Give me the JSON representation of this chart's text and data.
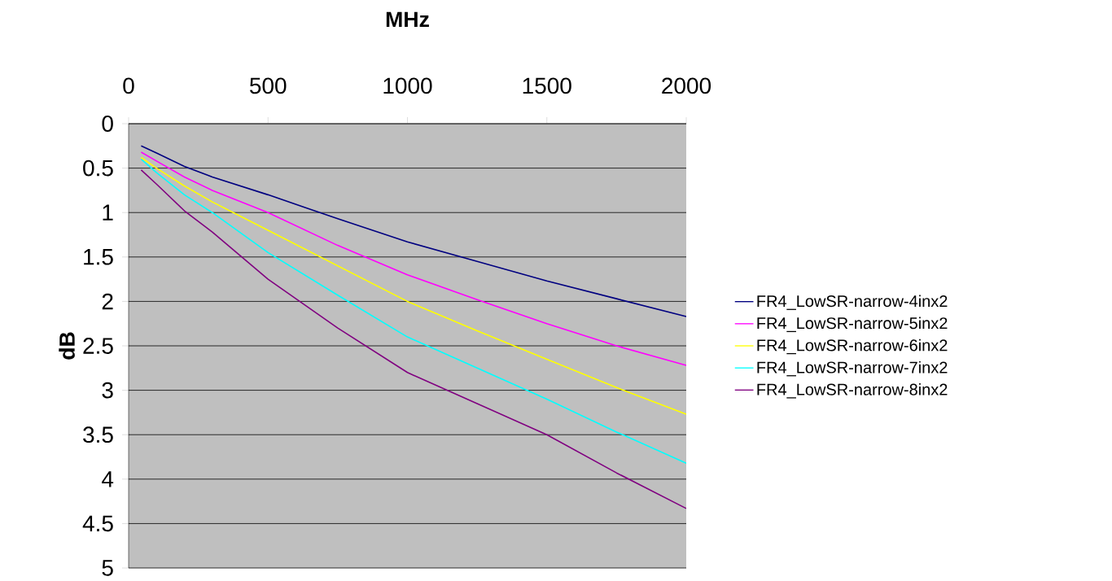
{
  "chart_data": {
    "type": "line",
    "xlabel": "MHz",
    "ylabel": "dB",
    "x": [
      45,
      100,
      200,
      300,
      500,
      750,
      1000,
      1250,
      1500,
      1750,
      2000
    ],
    "xlim": [
      0,
      2000
    ],
    "xticks": [
      0,
      500,
      1000,
      1500,
      2000
    ],
    "ylim": [
      5,
      0
    ],
    "yticks": [
      0,
      0.5,
      1,
      1.5,
      2,
      2.5,
      3,
      3.5,
      4,
      4.5,
      5
    ],
    "grid": "y",
    "legend": "right",
    "marker": "none",
    "line_style": "solid",
    "series": [
      {
        "name": "FR4_LowSR-narrow-4inx2",
        "color": "#000080",
        "values": [
          0.25,
          0.33,
          0.48,
          0.6,
          0.8,
          1.07,
          1.33,
          1.55,
          1.77,
          1.97,
          2.17
        ]
      },
      {
        "name": "FR4_LowSR-narrow-5inx2",
        "color": "#ff00ff",
        "values": [
          0.32,
          0.42,
          0.6,
          0.75,
          1.0,
          1.37,
          1.7,
          1.98,
          2.25,
          2.5,
          2.72
        ]
      },
      {
        "name": "FR4_LowSR-narrow-6inx2",
        "color": "#ffff00",
        "values": [
          0.38,
          0.5,
          0.7,
          0.88,
          1.2,
          1.6,
          2.0,
          2.33,
          2.65,
          2.97,
          3.27
        ]
      },
      {
        "name": "FR4_LowSR-narrow-7inx2",
        "color": "#00ffff",
        "values": [
          0.4,
          0.55,
          0.8,
          1.0,
          1.45,
          1.93,
          2.4,
          2.75,
          3.1,
          3.47,
          3.82
        ]
      },
      {
        "name": "FR4_LowSR-narrow-8inx2",
        "color": "#800080",
        "values": [
          0.52,
          0.68,
          0.98,
          1.22,
          1.75,
          2.3,
          2.8,
          3.15,
          3.5,
          3.93,
          4.33
        ]
      }
    ]
  }
}
